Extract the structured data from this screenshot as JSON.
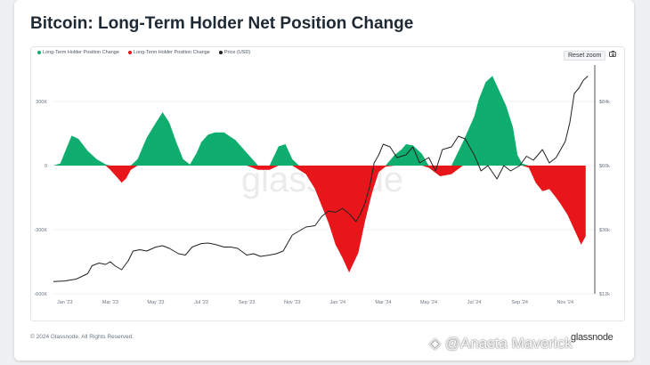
{
  "page": {
    "title": "Bitcoin: Long-Term Holder Net Position Change",
    "reset_zoom": "Reset zoom",
    "footer": "© 2024 Glassnode. All Rights Reserved.",
    "brand": "glassnode",
    "watermark": "glassnode",
    "attribution": "@Anasta Maverick",
    "icons": {
      "camera": "camera-icon",
      "attribution": "diamond-logo-icon"
    }
  },
  "chart_data": {
    "type": "area",
    "title": "Bitcoin: Long-Term Holder Net Position Change",
    "colors": {
      "positive": "#0fae6e",
      "negative": "#e8161b",
      "price": "#222222"
    },
    "legend": [
      {
        "label": "Long-Term Holder Position Change",
        "color": "#0fae6e"
      },
      {
        "label": "Long-Term Holder Position Change",
        "color": "#e8161b"
      },
      {
        "label": "Price (USD)",
        "color": "#222222"
      }
    ],
    "x_tick_labels": [
      "Jan '23",
      "Mar '23",
      "May '23",
      "Jul '23",
      "Sep '23",
      "Nov '23",
      "Jan '24",
      "Mar '24",
      "May '24",
      "Jul '24",
      "Sep '24",
      "Nov '24"
    ],
    "x_range_months": [
      -0.5,
      23.3
    ],
    "y_left": {
      "ticks": [
        "300K",
        "0",
        "-300K",
        "-600K"
      ],
      "tick_values": [
        300000,
        0,
        -300000,
        -600000
      ],
      "range": [
        -600000,
        450000
      ]
    },
    "y_right": {
      "ticks": [
        "$84k",
        "$60k",
        "$36k",
        "$12k"
      ],
      "tick_values": [
        84000,
        60000,
        36000,
        12000
      ],
      "range": [
        12000,
        96000
      ]
    },
    "grid": true,
    "legend_position": "top-left",
    "series": [
      {
        "name": "Long-Term Holder Position Change",
        "axis": "left",
        "x": [
          -0.5,
          -0.2,
          0.3,
          0.6,
          1.0,
          1.4,
          1.8,
          2.0,
          2.3,
          2.5,
          2.7,
          2.9,
          3.2,
          3.6,
          4.0,
          4.3,
          4.6,
          4.9,
          5.2,
          5.5,
          5.8,
          6.0,
          6.3,
          6.6,
          7.0,
          7.5,
          8.0,
          8.5,
          9.0,
          9.4,
          9.7,
          10.0,
          10.3,
          10.6,
          11.0,
          11.3,
          11.6,
          11.9,
          12.2,
          12.5,
          12.9,
          13.2,
          13.5,
          13.8,
          14.1,
          14.5,
          14.8,
          15.0,
          15.3,
          15.7,
          16.0,
          16.5,
          17.0,
          17.5,
          18.0,
          18.2,
          18.5,
          18.8,
          19.1,
          19.4,
          19.7,
          19.9,
          20.1,
          20.4,
          20.7,
          21.0,
          21.3,
          21.6,
          21.8,
          22.1,
          22.4,
          22.7,
          22.9
        ],
        "values": [
          0,
          10000,
          140000,
          125000,
          70000,
          30000,
          5000,
          -20000,
          -55000,
          -80000,
          -60000,
          -20000,
          30000,
          130000,
          200000,
          250000,
          200000,
          110000,
          30000,
          5000,
          60000,
          110000,
          145000,
          155000,
          155000,
          120000,
          60000,
          -20000,
          -20000,
          90000,
          100000,
          30000,
          -20000,
          -40000,
          -110000,
          -190000,
          -270000,
          -370000,
          -430000,
          -500000,
          -410000,
          -260000,
          -130000,
          -30000,
          -5000,
          50000,
          75000,
          100000,
          95000,
          55000,
          -10000,
          -50000,
          -40000,
          110000,
          230000,
          310000,
          390000,
          420000,
          350000,
          280000,
          180000,
          50000,
          10000,
          -10000,
          -80000,
          -120000,
          -110000,
          -150000,
          -180000,
          -230000,
          -300000,
          -370000,
          -330000
        ]
      },
      {
        "name": "Price (USD)",
        "axis": "right",
        "x": [
          -0.5,
          0.0,
          0.5,
          1.0,
          1.2,
          1.5,
          1.8,
          2.0,
          2.2,
          2.5,
          2.8,
          3.0,
          3.3,
          3.6,
          4.0,
          4.3,
          4.6,
          5.0,
          5.3,
          5.6,
          6.0,
          6.3,
          6.6,
          7.0,
          7.3,
          7.6,
          8.0,
          8.3,
          8.6,
          9.0,
          9.3,
          9.6,
          10.0,
          10.3,
          10.6,
          11.0,
          11.3,
          11.6,
          11.9,
          12.2,
          12.5,
          12.8,
          13.0,
          13.2,
          13.4,
          13.6,
          13.8,
          14.0,
          14.3,
          14.6,
          15.0,
          15.3,
          15.6,
          16.0,
          16.3,
          16.6,
          17.0,
          17.3,
          17.6,
          18.0,
          18.3,
          18.6,
          19.0,
          19.3,
          19.6,
          20.0,
          20.3,
          20.6,
          21.0,
          21.3,
          21.6,
          22.0,
          22.2,
          22.4,
          22.6,
          22.8,
          23.0
        ],
        "values": [
          16600,
          16800,
          17500,
          19500,
          22500,
          23500,
          23000,
          24000,
          22500,
          21000,
          24500,
          28000,
          28500,
          28000,
          29500,
          30000,
          29000,
          27000,
          26500,
          29500,
          30800,
          31000,
          30500,
          29500,
          29500,
          29000,
          26500,
          27000,
          26000,
          26500,
          27000,
          28000,
          34000,
          35500,
          37000,
          37500,
          41000,
          43000,
          42500,
          44000,
          42000,
          39000,
          42000,
          46000,
          52000,
          61000,
          64000,
          68000,
          67000,
          63000,
          64000,
          67000,
          61000,
          63000,
          58000,
          66000,
          67000,
          71000,
          70000,
          64000,
          58000,
          60000,
          55000,
          60000,
          58000,
          60000,
          63500,
          62000,
          66000,
          61000,
          63000,
          69000,
          76000,
          87000,
          89000,
          92000,
          93500
        ]
      }
    ]
  }
}
